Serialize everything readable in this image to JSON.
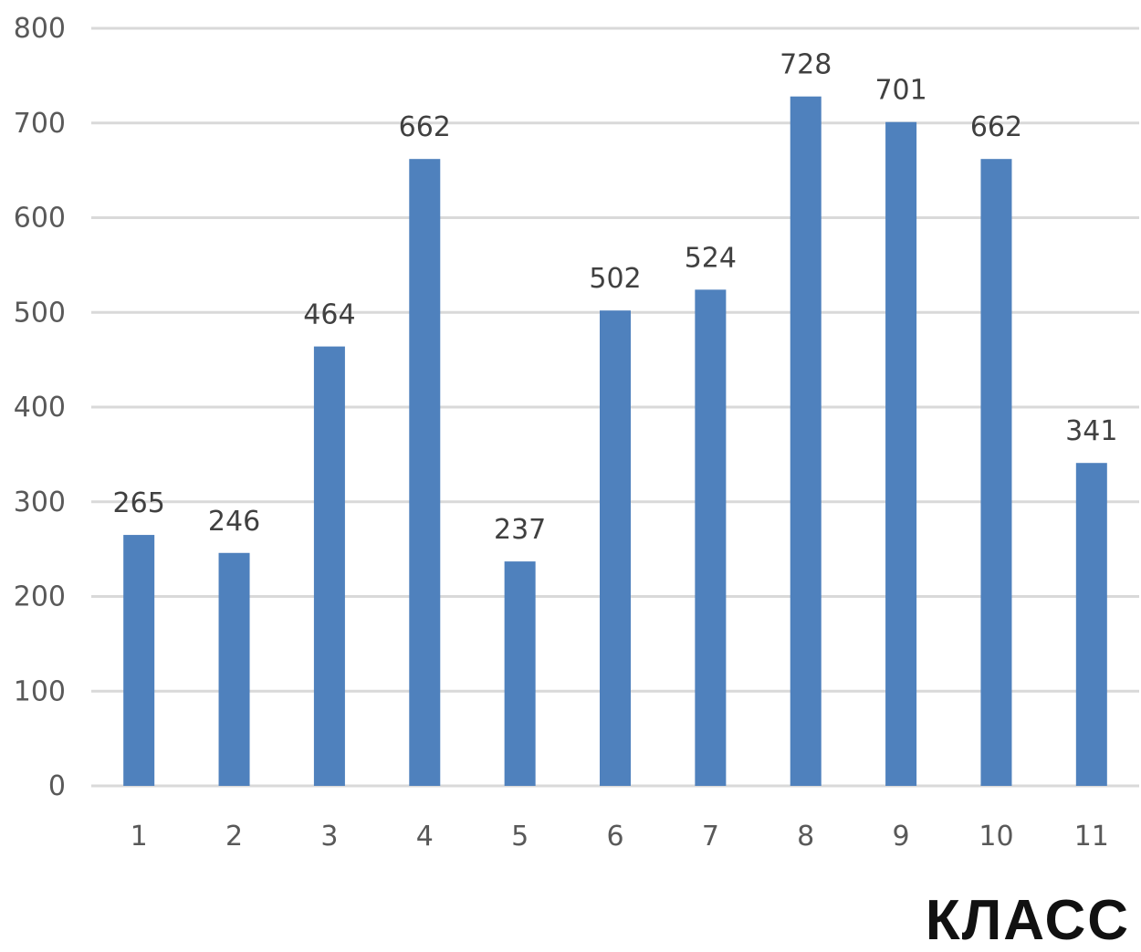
{
  "chart_data": {
    "type": "bar",
    "categories": [
      "1",
      "2",
      "3",
      "4",
      "5",
      "6",
      "7",
      "8",
      "9",
      "10",
      "11"
    ],
    "values": [
      265,
      246,
      464,
      662,
      237,
      502,
      524,
      728,
      701,
      662,
      341
    ],
    "xlabel": "КЛАСС",
    "ylabel": "",
    "ylim": [
      0,
      800
    ],
    "yticks": [
      0,
      100,
      200,
      300,
      400,
      500,
      600,
      700,
      800
    ],
    "grid": true,
    "data_labels": true,
    "bar_color": "#4f81bd"
  }
}
